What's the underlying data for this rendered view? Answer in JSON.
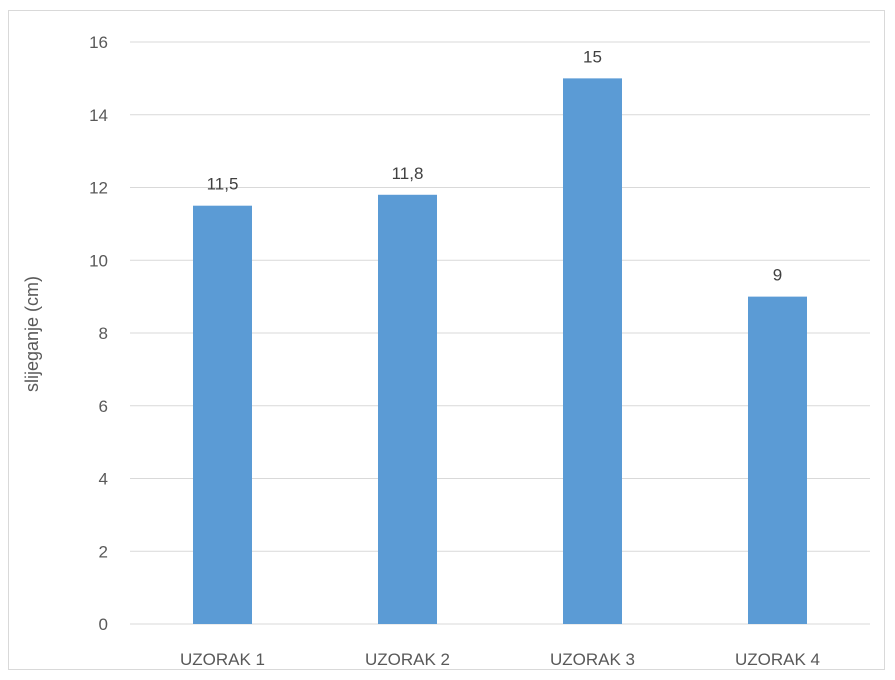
{
  "chart_data": {
    "type": "bar",
    "categories": [
      "UZORAK 1",
      "UZORAK 2",
      "UZORAK 3",
      "UZORAK 4"
    ],
    "values": [
      11.5,
      11.8,
      15,
      9
    ],
    "data_labels": [
      "11,5",
      "11,8",
      "15",
      "9"
    ],
    "ylabel": "slijeganje (cm)",
    "xlabel": "",
    "ylim": [
      0,
      16
    ],
    "yticks": [
      "0",
      "2",
      "4",
      "6",
      "8",
      "10",
      "12",
      "14",
      "16"
    ],
    "grid": true,
    "legend": "none",
    "bar_color": "#5b9bd5"
  }
}
